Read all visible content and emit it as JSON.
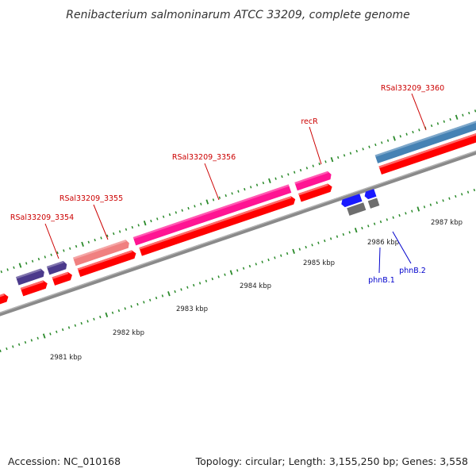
{
  "title": "Renibacterium salmoninarum ATCC 33209, complete genome",
  "footer": {
    "accession": "Accession: NC_010168",
    "summary": "Topology: circular; Length: 3,155,250 bp; Genes: 3,558"
  },
  "kbp_labels": [
    "2981 kbp",
    "2982 kbp",
    "2983 kbp",
    "2984 kbp",
    "2985 kbp",
    "2986 kbp",
    "2987 kbp"
  ],
  "gene_labels": [
    {
      "id": "l3354",
      "text": "RSal33209_3354",
      "color": "#cc0000"
    },
    {
      "id": "l3355",
      "text": "RSal33209_3355",
      "color": "#cc0000"
    },
    {
      "id": "l3356",
      "text": "RSal33209_3356",
      "color": "#cc0000"
    },
    {
      "id": "lrecR",
      "text": "recR",
      "color": "#cc0000"
    },
    {
      "id": "l3360",
      "text": "RSal33209_3360",
      "color": "#cc0000"
    },
    {
      "id": "lphnB1",
      "text": "phnB.1",
      "color": "#0000cc"
    },
    {
      "id": "lphnB2",
      "text": "phnB.2",
      "color": "#0000cc"
    }
  ],
  "colors": {
    "backbone": "#8c8c8c",
    "cds": "#ff0000",
    "tick": "#2a8a2a",
    "gene_purple": "#4b3a8c",
    "gene_salmon": "#f08080",
    "gene_pink": "#ff1493",
    "gene_steelblue": "#4682b4",
    "gene_blue": "#1a1aff",
    "gene_grey": "#707070"
  }
}
